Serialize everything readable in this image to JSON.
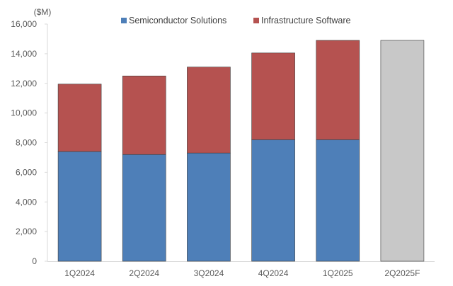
{
  "chart_data": {
    "type": "bar",
    "stacked": true,
    "unit_label": "($M)",
    "categories": [
      "1Q2024",
      "2Q2024",
      "3Q2024",
      "4Q2024",
      "1Q2025",
      "2Q2025F"
    ],
    "series": [
      {
        "name": "Semiconductor Solutions",
        "color": "#4e7fb8",
        "values": [
          7400,
          7200,
          7300,
          8200,
          8200,
          null
        ]
      },
      {
        "name": "Infrastructure Software",
        "color": "#b55250",
        "values": [
          4550,
          5300,
          5800,
          5850,
          6700,
          null
        ]
      }
    ],
    "forecast": {
      "category": "2Q2025F",
      "value": 14900,
      "color": "#c8c8c8"
    },
    "yticks": [
      0,
      2000,
      4000,
      6000,
      8000,
      10000,
      12000,
      14000,
      16000
    ],
    "ytick_labels": [
      "0",
      "2,000",
      "4,000",
      "6,000",
      "8,000",
      "10,000",
      "12,000",
      "14,000",
      "16,000"
    ],
    "ylim": [
      0,
      16000
    ],
    "grid": false,
    "legend_position": "top"
  }
}
